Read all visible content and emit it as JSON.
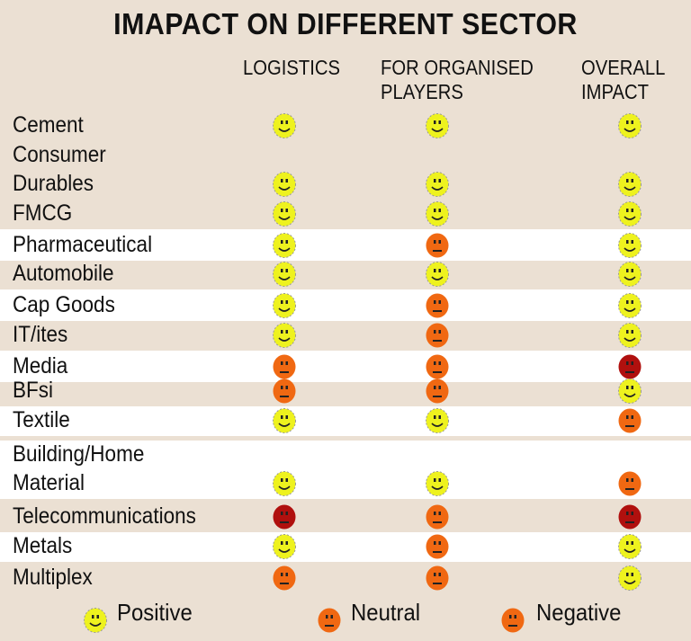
{
  "title": "IMAPACT ON DIFFERENT SECTOR",
  "columns": [
    [
      "LOGISTICS"
    ],
    [
      "FOR ORGANISED",
      "PLAYERS"
    ],
    [
      "OVERALL",
      "IMPACT"
    ]
  ],
  "colors": {
    "background": "#ebe0d3",
    "positive": "#eef21e",
    "neutral": "#f06812",
    "negative": "#b0100e",
    "legend_negative": "#f06812"
  },
  "rows": [
    {
      "sector": "Cement",
      "ratings": [
        "positive",
        "positive",
        "positive"
      ]
    },
    {
      "sector": "Consumer\nDurables",
      "ratings": [
        "positive",
        "positive",
        "positive"
      ]
    },
    {
      "sector": "FMCG",
      "ratings": [
        "positive",
        "positive",
        "positive"
      ]
    },
    {
      "sector": "Pharmaceutical",
      "ratings": [
        "positive",
        "neutral",
        "positive"
      ]
    },
    {
      "sector": "Automobile",
      "ratings": [
        "positive",
        "positive",
        "positive"
      ]
    },
    {
      "sector": "Cap Goods",
      "ratings": [
        "positive",
        "neutral",
        "positive"
      ]
    },
    {
      "sector": "IT/ites",
      "ratings": [
        "positive",
        "neutral",
        "positive"
      ]
    },
    {
      "sector": "Media",
      "ratings": [
        "neutral",
        "neutral",
        "negative"
      ]
    },
    {
      "sector": "BFsi",
      "ratings": [
        "neutral",
        "neutral",
        "positive"
      ]
    },
    {
      "sector": "Textile",
      "ratings": [
        "positive",
        "positive",
        "neutral"
      ]
    },
    {
      "sector": "Building/Home\nMaterial",
      "ratings": [
        "positive",
        "positive",
        "neutral"
      ]
    },
    {
      "sector": "Telecommunications",
      "ratings": [
        "negative",
        "neutral",
        "negative"
      ]
    },
    {
      "sector": "Metals",
      "ratings": [
        "positive",
        "neutral",
        "positive"
      ]
    },
    {
      "sector": "Multiplex",
      "ratings": [
        "neutral",
        "neutral",
        "positive"
      ]
    }
  ],
  "legend": [
    {
      "label": "Positive",
      "icon": "positive"
    },
    {
      "label": "Neutral",
      "icon": "neutral"
    },
    {
      "label": "Negative",
      "icon": "legend_negative"
    }
  ]
}
